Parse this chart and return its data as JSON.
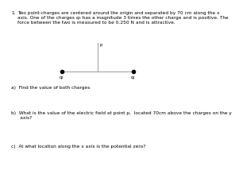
{
  "title_number": "1.",
  "title_text": "Two point-charges are centered around the origin and separated by 70 cm along the x\naxis. One of the charges q₁ has a magnitude 3 times the other charge and is positive. The\nforce between the two is measured to be 0.250 N and is attractive.",
  "diagram": {
    "charge_left_label": "q₁",
    "charge_right_label": "q₂",
    "point_p_label": "p"
  },
  "part_a": "a)  Find the value of both charges",
  "part_b": "b)  What is the value of the electric field at point p,  located 70cm above the charges on the y\n      axis?",
  "part_c": "c)  At what location along the x axis is the potential zero?",
  "background_color": "#ffffff",
  "text_color": "#000000",
  "line_color": "#999999",
  "dot_color": "#000000",
  "fontsize_title": 4.2,
  "fontsize_labels": 4.0,
  "fontsize_parts": 4.2
}
